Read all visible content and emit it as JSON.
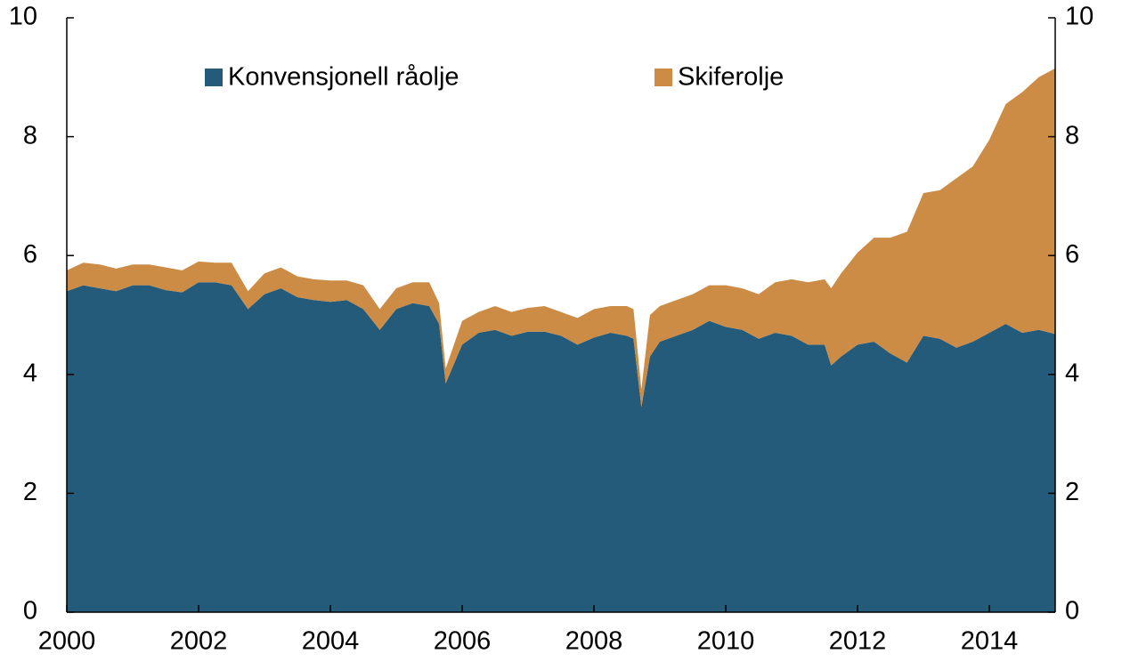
{
  "chart_data": {
    "type": "stacked_area",
    "x": [
      2000,
      2000.25,
      2000.5,
      2000.75,
      2001,
      2001.25,
      2001.5,
      2001.75,
      2002,
      2002.25,
      2002.5,
      2002.75,
      2003,
      2003.25,
      2003.5,
      2003.75,
      2004,
      2004.25,
      2004.5,
      2004.75,
      2005,
      2005.25,
      2005.5,
      2005.65,
      2005.75,
      2006,
      2006.25,
      2006.5,
      2006.75,
      2007,
      2007.25,
      2007.5,
      2007.75,
      2008,
      2008.25,
      2008.5,
      2008.6,
      2008.72,
      2008.85,
      2009,
      2009.25,
      2009.5,
      2009.75,
      2010,
      2010.25,
      2010.5,
      2010.75,
      2011,
      2011.25,
      2011.5,
      2011.6,
      2011.75,
      2012,
      2012.25,
      2012.5,
      2012.75,
      2013,
      2013.25,
      2013.5,
      2013.75,
      2014,
      2014.25,
      2014.5,
      2014.75,
      2015
    ],
    "series": [
      {
        "name": "Konvensjonell råolje",
        "color": "#245a7a",
        "values": [
          5.4,
          5.5,
          5.45,
          5.4,
          5.5,
          5.5,
          5.42,
          5.38,
          5.55,
          5.55,
          5.5,
          5.1,
          5.35,
          5.45,
          5.3,
          5.25,
          5.22,
          5.25,
          5.1,
          4.75,
          5.1,
          5.2,
          5.15,
          4.85,
          3.85,
          4.5,
          4.7,
          4.75,
          4.65,
          4.72,
          4.72,
          4.65,
          4.5,
          4.62,
          4.7,
          4.65,
          4.6,
          3.45,
          4.3,
          4.55,
          4.65,
          4.75,
          4.9,
          4.8,
          4.75,
          4.6,
          4.7,
          4.65,
          4.5,
          4.5,
          4.15,
          4.3,
          4.5,
          4.55,
          4.35,
          4.2,
          4.65,
          4.6,
          4.45,
          4.55,
          4.7,
          4.85,
          4.7,
          4.75,
          4.68
        ]
      },
      {
        "name": "Skiferolje",
        "color": "#cc8c46",
        "values": [
          0.35,
          0.38,
          0.4,
          0.38,
          0.35,
          0.35,
          0.38,
          0.37,
          0.35,
          0.33,
          0.38,
          0.3,
          0.35,
          0.35,
          0.35,
          0.35,
          0.36,
          0.33,
          0.4,
          0.35,
          0.35,
          0.35,
          0.4,
          0.35,
          0.25,
          0.4,
          0.35,
          0.4,
          0.4,
          0.4,
          0.43,
          0.4,
          0.45,
          0.48,
          0.45,
          0.5,
          0.5,
          0.3,
          0.7,
          0.6,
          0.6,
          0.6,
          0.6,
          0.7,
          0.7,
          0.75,
          0.85,
          0.95,
          1.05,
          1.1,
          1.3,
          1.4,
          1.55,
          1.75,
          1.95,
          2.2,
          2.4,
          2.5,
          2.85,
          2.95,
          3.25,
          3.7,
          4.05,
          4.25,
          4.47
        ]
      }
    ],
    "xlim": [
      2000,
      2015
    ],
    "xticks": [
      2000,
      2002,
      2004,
      2006,
      2008,
      2010,
      2012,
      2014
    ],
    "ylim": [
      0,
      10
    ],
    "yticks": [
      0,
      2,
      4,
      6,
      8,
      10
    ],
    "legend": "top"
  }
}
